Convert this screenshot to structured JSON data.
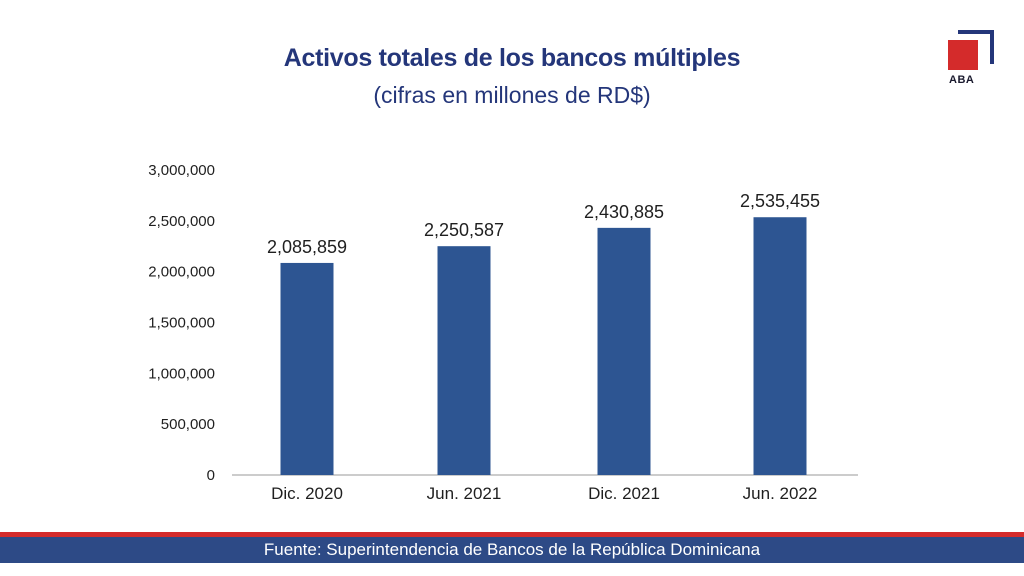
{
  "header": {
    "title": "Activos totales de los bancos múltiples",
    "subtitle": "(cifras en millones de RD$)"
  },
  "logo": {
    "text": "ABA",
    "colors": {
      "red": "#d42b2b",
      "navy": "#24367a"
    }
  },
  "chart_data": {
    "type": "bar",
    "title": "Activos totales de los bancos múltiples",
    "subtitle": "(cifras en millones de RD$)",
    "categories": [
      "Dic. 2020",
      "Jun. 2021",
      "Dic. 2021",
      "Jun. 2022"
    ],
    "values": [
      2085859,
      2250587,
      2430885,
      2535455
    ],
    "data_labels": [
      "2,085,859",
      "2,250,587",
      "2,430,885",
      "2,535,455"
    ],
    "ylim": [
      0,
      3000000
    ],
    "yticks": [
      0,
      500000,
      1000000,
      1500000,
      2000000,
      2500000,
      3000000
    ],
    "ytick_labels": [
      "0",
      "500,000",
      "1,000,000",
      "1,500,000",
      "2,000,000",
      "2,500,000",
      "3,000,000"
    ],
    "grid": false,
    "legend": "none",
    "bar_color": "#2d5592"
  },
  "footer": {
    "source": "Fuente: Superintendencia de Bancos de la República Dominicana",
    "colors": {
      "bar": "#2d4a86",
      "stripe": "#d42b2b"
    }
  }
}
